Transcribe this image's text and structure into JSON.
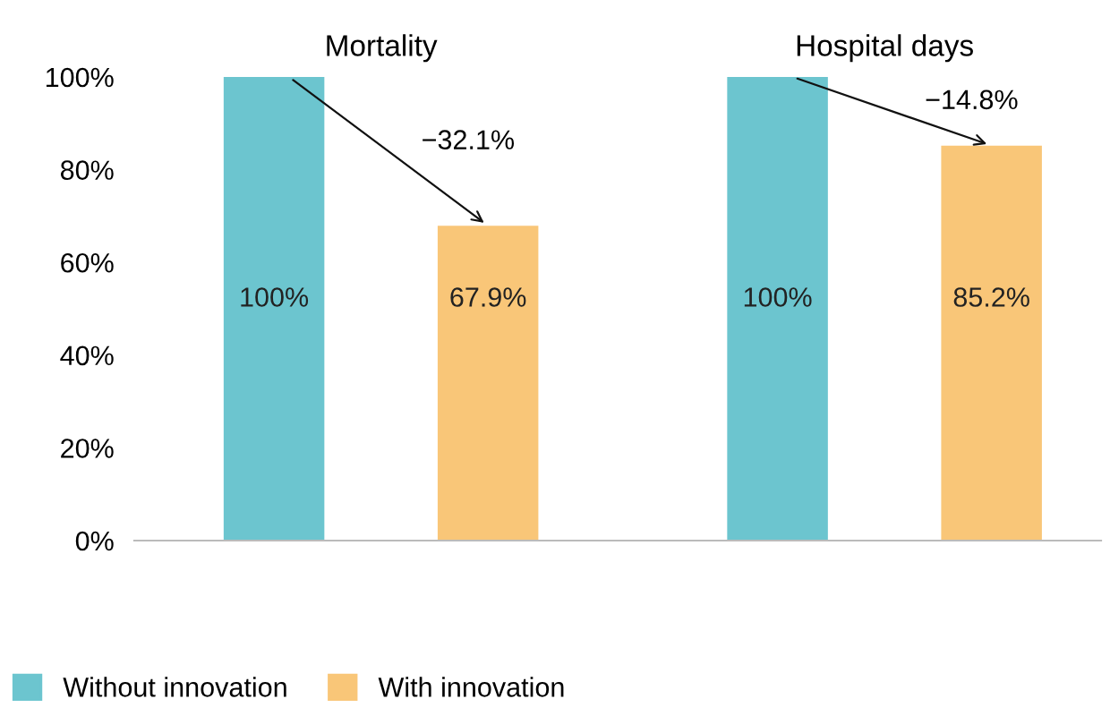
{
  "chart_data": {
    "type": "bar",
    "categories": [
      "Mortality",
      "Hospital days"
    ],
    "series": [
      {
        "name": "Without innovation",
        "color": "#6cc5cf",
        "values": [
          100,
          100
        ],
        "value_labels": [
          "100%",
          "100%"
        ]
      },
      {
        "name": "With innovation",
        "color": "#f9c678",
        "values": [
          67.9,
          85.2
        ],
        "value_labels": [
          "67.9%",
          "85.2%"
        ]
      }
    ],
    "ylim": [
      0,
      100
    ],
    "yticks": [
      {
        "value": 0,
        "label": "0%"
      },
      {
        "value": 20,
        "label": "20%"
      },
      {
        "value": 40,
        "label": "40%"
      },
      {
        "value": 60,
        "label": "60%"
      },
      {
        "value": 80,
        "label": "80%"
      },
      {
        "value": 100,
        "label": "100%"
      }
    ],
    "annotations": [
      {
        "text": "−32.1%",
        "y": 67.9
      },
      {
        "text": "−14.8%",
        "y": 85.2
      }
    ],
    "grid": false,
    "legend": "bottom left"
  }
}
